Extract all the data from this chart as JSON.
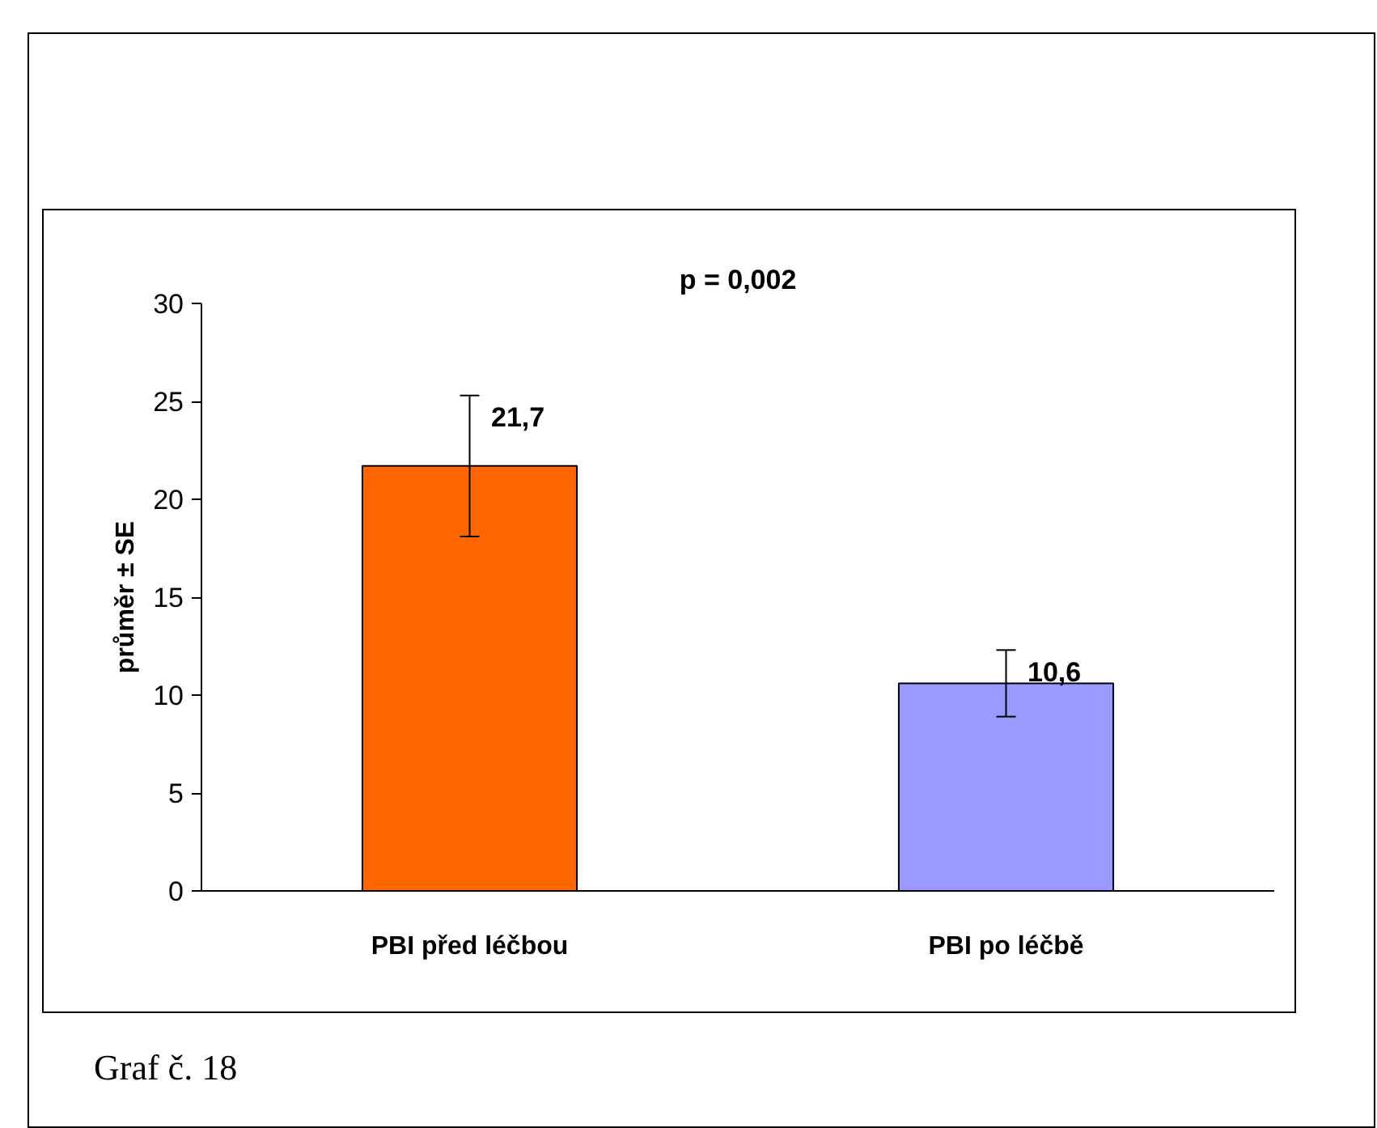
{
  "chart_data": {
    "type": "bar",
    "ylabel": "průměr ± SE",
    "categories": [
      "PBI před léčbou",
      "PBI po léčbě"
    ],
    "values": [
      21.7,
      10.6
    ],
    "colors": [
      "#ff6600",
      "#9999ff"
    ],
    "errors": [
      3.6,
      1.7
    ],
    "value_labels": [
      "21,7",
      "10,6"
    ],
    "ylim": [
      0,
      30
    ],
    "yticks": [
      0,
      5,
      10,
      15,
      20,
      25,
      30
    ],
    "grid": false,
    "legend": false,
    "annotations": [
      "p = 0,002",
      "Graf č. 18"
    ]
  }
}
